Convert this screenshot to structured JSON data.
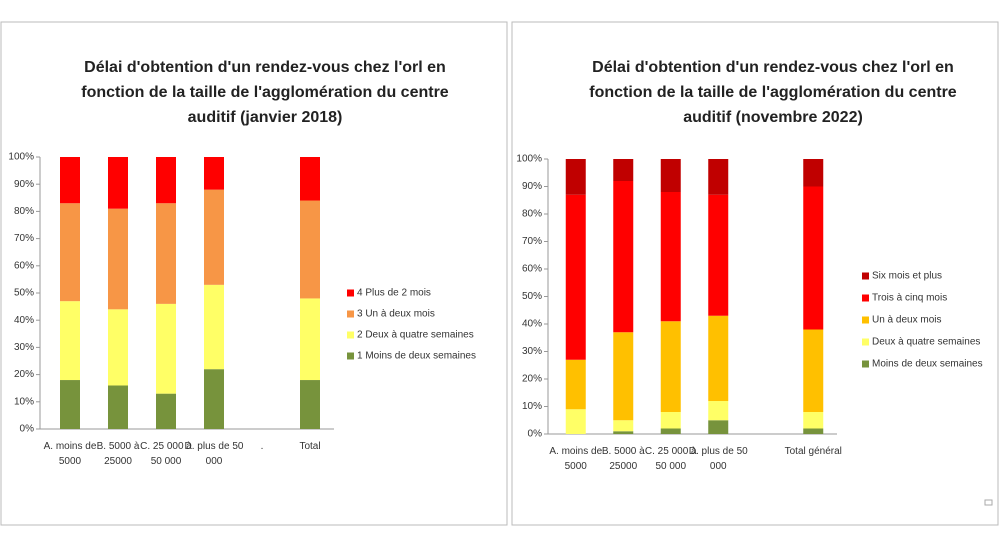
{
  "chart_data": [
    {
      "type": "stacked-bar",
      "title": "Délai d'obtention d'un rendez-vous chez l'orl en fonction de la taille de l'agglomération du centre auditif (janvier 2018)",
      "categories": [
        "A. moins de 5000",
        "B. 5000 à 25000",
        "C. 25 000 à 50 000",
        "D. plus de 50 000",
        ".",
        "Total"
      ],
      "series": [
        {
          "name": "1 Moins de deux semaines",
          "color": "#77933c",
          "values": [
            18,
            16,
            13,
            22,
            null,
            18
          ]
        },
        {
          "name": "2 Deux à quatre semaines",
          "color": "#ffff66",
          "values": [
            29,
            28,
            33,
            31,
            null,
            30
          ]
        },
        {
          "name": "3 Un à deux mois",
          "color": "#f79646",
          "values": [
            36,
            37,
            37,
            35,
            null,
            36
          ]
        },
        {
          "name": "4 Plus de 2 mois",
          "color": "#ff0000",
          "values": [
            17,
            19,
            17,
            12,
            null,
            16
          ]
        }
      ],
      "ylim": [
        0,
        100
      ],
      "yticks": [
        {
          "value": 0,
          "label": "0%"
        },
        {
          "value": 10,
          "label": "10%"
        },
        {
          "value": 20,
          "label": "20%"
        },
        {
          "value": 30,
          "label": "30%"
        },
        {
          "value": 40,
          "label": "40%"
        },
        {
          "value": 50,
          "label": "50%"
        },
        {
          "value": 60,
          "label": "60%"
        },
        {
          "value": 70,
          "label": "70%"
        },
        {
          "value": 80,
          "label": "80%"
        },
        {
          "value": 90,
          "label": "90%"
        },
        {
          "value": 100,
          "label": "100%"
        }
      ],
      "legend": "right"
    },
    {
      "type": "stacked-bar",
      "title": "Délai d'obtention d'un rendez-vous chez l'orl en fonction de la taille de l'agglomération du centre auditif (novembre 2022)",
      "categories": [
        "A. moins de 5000",
        "B. 5000 à 25000",
        "C. 25 000 à 50 000",
        "D. plus de 50 000",
        null,
        "Total général"
      ],
      "series": [
        {
          "name": "Moins de deux semaines",
          "color": "#77933c",
          "values": [
            0,
            1,
            2,
            5,
            null,
            2
          ]
        },
        {
          "name": "Deux à quatre semaines",
          "color": "#ffff66",
          "values": [
            9,
            4,
            6,
            7,
            null,
            6
          ]
        },
        {
          "name": "Un à deux mois",
          "color": "#ffc000",
          "values": [
            18,
            32,
            33,
            31,
            null,
            30
          ]
        },
        {
          "name": "Trois à cinq mois",
          "color": "#ff0000",
          "values": [
            60,
            55,
            47,
            44,
            null,
            52
          ]
        },
        {
          "name": "Six mois et plus",
          "color": "#c00000",
          "values": [
            13,
            8,
            12,
            13,
            null,
            10
          ]
        }
      ],
      "ylim": [
        0,
        100
      ],
      "yticks": [
        {
          "value": 0,
          "label": "0%"
        },
        {
          "value": 10,
          "label": "10%"
        },
        {
          "value": 20,
          "label": "20%"
        },
        {
          "value": 30,
          "label": "30%"
        },
        {
          "value": 40,
          "label": "40%"
        },
        {
          "value": 50,
          "label": "50%"
        },
        {
          "value": 60,
          "label": "60%"
        },
        {
          "value": 70,
          "label": "70%"
        },
        {
          "value": 80,
          "label": "80%"
        },
        {
          "value": 90,
          "label": "90%"
        },
        {
          "value": 100,
          "label": "100%"
        }
      ],
      "legend": "right"
    }
  ]
}
